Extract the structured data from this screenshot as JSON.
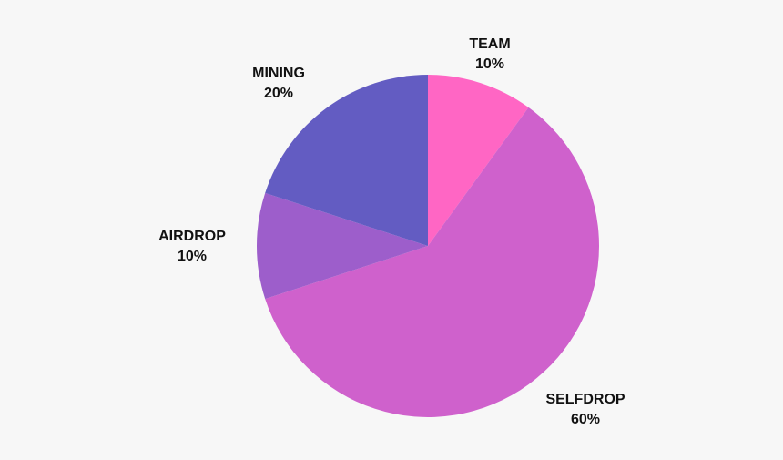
{
  "chart_data": {
    "type": "pie",
    "start_angle_deg": 0,
    "direction": "clockwise",
    "slices": [
      {
        "label": "TEAM",
        "value": 10,
        "percent_label": "10%",
        "color": "#ff66c4"
      },
      {
        "label": "SELFDROP",
        "value": 60,
        "percent_label": "60%",
        "color": "#cf61cc"
      },
      {
        "label": "AIRDROP",
        "value": 10,
        "percent_label": "10%",
        "color": "#9d5ecb"
      },
      {
        "label": "MINING",
        "value": 20,
        "percent_label": "20%",
        "color": "#635cc2"
      }
    ]
  }
}
